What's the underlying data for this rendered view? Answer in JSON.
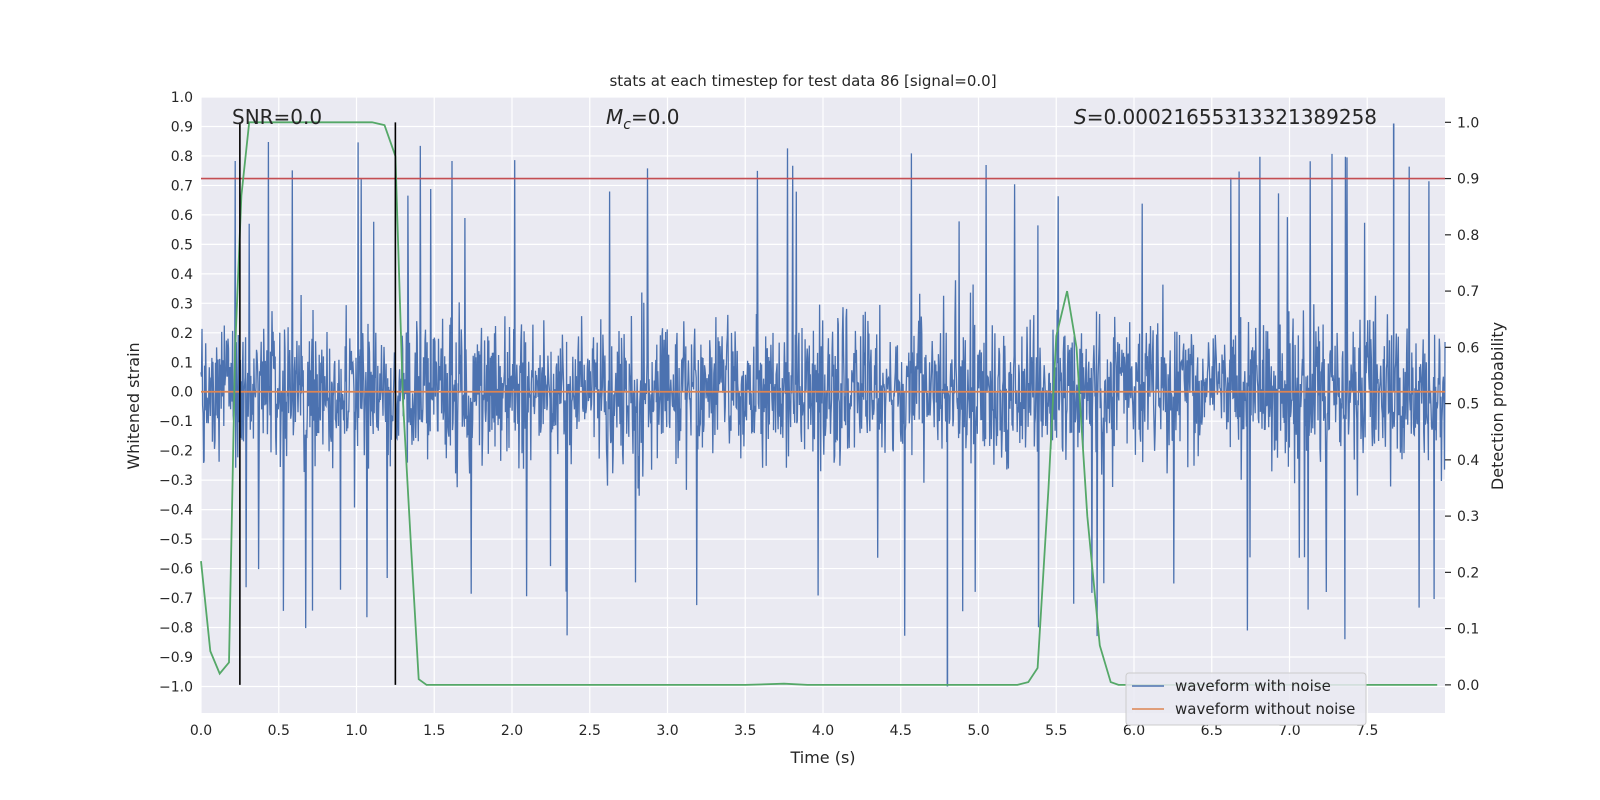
{
  "chart_data": {
    "type": "line",
    "title": "stats at each timestep for test data 86 [signal=0.0]",
    "xlabel": "Time (s)",
    "ylabel": "Whitened strain",
    "y2label": "Detection probability",
    "xlim": [
      0.0,
      8.0
    ],
    "ylim": [
      -1.09,
      1.0
    ],
    "y2lim": [
      -0.05,
      1.045
    ],
    "x_ticks": [
      "0.0",
      "0.5",
      "1.0",
      "1.5",
      "2.0",
      "2.5",
      "3.0",
      "3.5",
      "4.0",
      "4.5",
      "5.0",
      "5.5",
      "6.0",
      "6.5",
      "7.0",
      "7.5"
    ],
    "y_ticks": [
      "1.0",
      "0.9",
      "0.8",
      "0.7",
      "0.6",
      "0.5",
      "0.4",
      "0.3",
      "0.2",
      "0.1",
      "0.0",
      "−0.1",
      "−0.2",
      "−0.3",
      "−0.4",
      "−0.5",
      "−0.6",
      "−0.7",
      "−0.8",
      "−0.9",
      "−1.0"
    ],
    "y2_ticks": [
      "1.0",
      "0.9",
      "0.8",
      "0.7",
      "0.6",
      "0.5",
      "0.4",
      "0.3",
      "0.2",
      "0.1",
      "0.0"
    ],
    "annotations": {
      "snr": "SNR=0.0",
      "mc_symbol": "M",
      "mc_sub": "c",
      "mc_value": "=0.0",
      "s_symbol": "S",
      "s_value": "=0.00021655313321389258"
    },
    "threshold_line": {
      "y2": 0.9,
      "color": "#c44e52"
    },
    "vertical_lines": [
      0.25,
      1.25
    ],
    "noise_series": {
      "name": "waveform with noise",
      "color": "#4c72b0",
      "x_range": [
        0.0,
        8.0
      ],
      "core_envelope": [
        -0.45,
        0.5
      ],
      "max_peak": 0.91,
      "min_peak": -1.0
    },
    "clean_series": {
      "name": "waveform without noise",
      "color": "#dd8452",
      "y": 0.0
    },
    "probability_series": {
      "name": "detection probability",
      "color": "#55a868",
      "x": [
        0.0,
        0.06,
        0.12,
        0.18,
        0.22,
        0.26,
        0.31,
        0.5,
        0.8,
        1.0,
        1.1,
        1.18,
        1.25,
        1.3,
        1.35,
        1.4,
        1.45,
        2.0,
        3.0,
        3.5,
        3.75,
        3.9,
        4.5,
        5.0,
        5.25,
        5.32,
        5.38,
        5.45,
        5.5,
        5.57,
        5.63,
        5.7,
        5.78,
        5.85,
        5.9,
        6.5,
        7.0,
        7.5,
        7.95
      ],
      "y": [
        0.22,
        0.06,
        0.02,
        0.04,
        0.6,
        0.87,
        1.0,
        1.0,
        1.0,
        1.0,
        1.0,
        0.995,
        0.94,
        0.5,
        0.25,
        0.01,
        0.0,
        0.0,
        0.0,
        0.0,
        0.002,
        0.0,
        0.0,
        0.0,
        0.0,
        0.005,
        0.03,
        0.35,
        0.62,
        0.7,
        0.6,
        0.3,
        0.07,
        0.005,
        0.0,
        0.0,
        0.0,
        0.0,
        0.0
      ]
    },
    "legend": {
      "placement": "lower-right",
      "entries": [
        "waveform with noise",
        "waveform without noise"
      ]
    },
    "grid": true
  }
}
